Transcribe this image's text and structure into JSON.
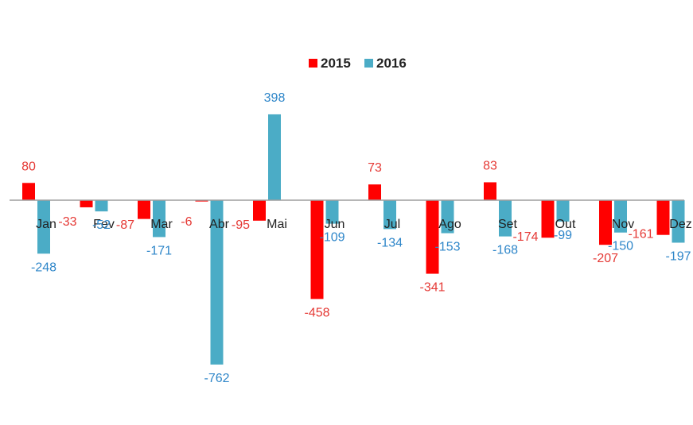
{
  "chart_data": {
    "type": "bar",
    "categories": [
      "Jan",
      "Fev",
      "Mar",
      "Abr",
      "Mai",
      "Jun",
      "Jul",
      "Ago",
      "Set",
      "Out",
      "Nov",
      "Dez"
    ],
    "series": [
      {
        "name": "2015",
        "color": "#ff0000",
        "label_color": "#e53935",
        "values": [
          80,
          -33,
          -87,
          -6,
          -95,
          -458,
          73,
          -341,
          83,
          -174,
          -207,
          -161
        ]
      },
      {
        "name": "2016",
        "color": "#4bacc6",
        "label_color": "#2e86c9",
        "values": [
          -248,
          -52,
          -171,
          -762,
          398,
          -109,
          -134,
          -153,
          -168,
          -99,
          -150,
          -197
        ]
      }
    ],
    "ylim": [
      -762,
      398
    ],
    "legend_position": "top-center",
    "grid": false
  }
}
